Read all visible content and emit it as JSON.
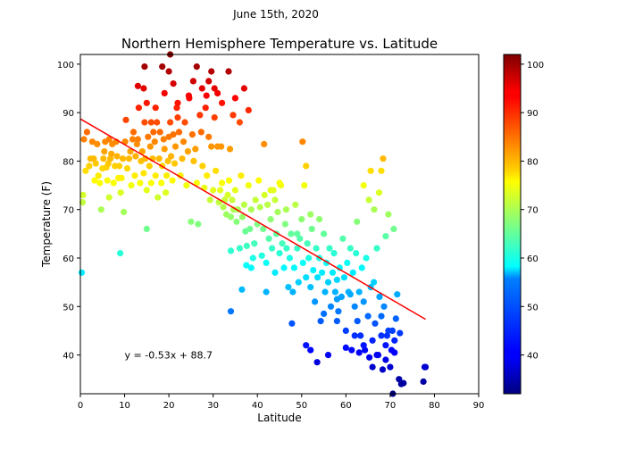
{
  "chart_data": {
    "type": "scatter",
    "suptitle": "June 15th, 2020",
    "title": "Northern Hemisphere Temperature vs. Latitude",
    "xlabel": "Latitude",
    "ylabel": "Temperature (F)",
    "xlim": [
      0,
      90
    ],
    "ylim": [
      32,
      102
    ],
    "xticks": [
      0,
      10,
      20,
      30,
      40,
      50,
      60,
      70,
      80,
      90
    ],
    "yticks": [
      40,
      50,
      60,
      70,
      80,
      90,
      100
    ],
    "grid": false,
    "colormap": "jet",
    "colorbar": {
      "range": [
        32,
        102
      ],
      "ticks": [
        40,
        50,
        60,
        70,
        80,
        90,
        100
      ]
    },
    "regression": {
      "slope": -0.53,
      "intercept": 88.7,
      "x_range": [
        0,
        78
      ],
      "color": "#ff0000",
      "equation": "y = -0.53x + 88.7",
      "label_position": [
        10,
        40
      ]
    },
    "points": [
      [
        0.3,
        57
      ],
      [
        0.5,
        71.5
      ],
      [
        0.6,
        73
      ],
      [
        0.8,
        84.5
      ],
      [
        1.2,
        78
      ],
      [
        1.5,
        86
      ],
      [
        2,
        79
      ],
      [
        2.3,
        80.5
      ],
      [
        2.7,
        84
      ],
      [
        3,
        80.5
      ],
      [
        3.2,
        76
      ],
      [
        3.5,
        79.5
      ],
      [
        3.8,
        83.5
      ],
      [
        4.1,
        77
      ],
      [
        4.4,
        75.5
      ],
      [
        4.7,
        70
      ],
      [
        5,
        78.5
      ],
      [
        5.2,
        80.5
      ],
      [
        5.4,
        82
      ],
      [
        5.6,
        84
      ],
      [
        5.9,
        78.7
      ],
      [
        6.1,
        76
      ],
      [
        6.3,
        79.5
      ],
      [
        6.5,
        84.5
      ],
      [
        6.8,
        80.5
      ],
      [
        7,
        81.5
      ],
      [
        7.2,
        83.5
      ],
      [
        7.5,
        75.5
      ],
      [
        7.8,
        79
      ],
      [
        8.1,
        84
      ],
      [
        8.3,
        81
      ],
      [
        8.6,
        76.5
      ],
      [
        8.8,
        79
      ],
      [
        9.1,
        73.5
      ],
      [
        9.3,
        76.5
      ],
      [
        9.6,
        80.5
      ],
      [
        9.8,
        69.5
      ],
      [
        10.1,
        84
      ],
      [
        10.3,
        88.5
      ],
      [
        10.6,
        78.5
      ],
      [
        9,
        61
      ],
      [
        6.5,
        72.5
      ],
      [
        11,
        80.5
      ],
      [
        11.3,
        82
      ],
      [
        11.5,
        75
      ],
      [
        11.8,
        84.5
      ],
      [
        12,
        86
      ],
      [
        12.3,
        77
      ],
      [
        12.5,
        81
      ],
      [
        12.8,
        83.5
      ],
      [
        13,
        84.5
      ],
      [
        13.2,
        91
      ],
      [
        13.5,
        75.5
      ],
      [
        13.7,
        80
      ],
      [
        14,
        82
      ],
      [
        14.3,
        77.5
      ],
      [
        14.5,
        88
      ],
      [
        14.7,
        80.5
      ],
      [
        15,
        74
      ],
      [
        15,
        66
      ],
      [
        15.3,
        85
      ],
      [
        15.6,
        79
      ],
      [
        15.8,
        83
      ],
      [
        16,
        75.5
      ],
      [
        16.3,
        80.5
      ],
      [
        16.5,
        86
      ],
      [
        16.8,
        84
      ],
      [
        17,
        77
      ],
      [
        17.3,
        88
      ],
      [
        17.5,
        72.5
      ],
      [
        17.8,
        80.5
      ],
      [
        18,
        86
      ],
      [
        18.3,
        75.5
      ],
      [
        18.5,
        79
      ],
      [
        18.8,
        84.5
      ],
      [
        19,
        82.5
      ],
      [
        19.3,
        73.5
      ],
      [
        19.5,
        77
      ],
      [
        19.8,
        80
      ],
      [
        20,
        85
      ],
      [
        20.3,
        88
      ],
      [
        20.5,
        81
      ],
      [
        20.8,
        76
      ],
      [
        21,
        85.5
      ],
      [
        21.3,
        79.5
      ],
      [
        21.5,
        83
      ],
      [
        21.8,
        91
      ],
      [
        22,
        89
      ],
      [
        22.3,
        86
      ],
      [
        22.6,
        77
      ],
      [
        23,
        80.5
      ],
      [
        23.3,
        84
      ],
      [
        23.6,
        88
      ],
      [
        24,
        75
      ],
      [
        24.3,
        82
      ],
      [
        24.6,
        93
      ],
      [
        25,
        67.5
      ],
      [
        25.3,
        85.5
      ],
      [
        25.6,
        80
      ],
      [
        26,
        82.5
      ],
      [
        26.3,
        75.5
      ],
      [
        26.6,
        67
      ],
      [
        27,
        89.5
      ],
      [
        27.3,
        86
      ],
      [
        27.6,
        79
      ],
      [
        28,
        74.5
      ],
      [
        28.3,
        91
      ],
      [
        28.6,
        77
      ],
      [
        29,
        85
      ],
      [
        29.3,
        72
      ],
      [
        29.6,
        83
      ],
      [
        30,
        74
      ],
      [
        30.3,
        89
      ],
      [
        30.6,
        78
      ],
      [
        31,
        83
      ],
      [
        31.3,
        71.5
      ],
      [
        31.6,
        74
      ],
      [
        32,
        75.5
      ],
      [
        32.3,
        70.5
      ],
      [
        32.6,
        72
      ],
      [
        33,
        69
      ],
      [
        33.3,
        73
      ],
      [
        33.6,
        76
      ],
      [
        34,
        68.5
      ],
      [
        34.3,
        72
      ],
      [
        34.6,
        70
      ],
      [
        35,
        74
      ],
      [
        35.3,
        67.5
      ],
      [
        35.6,
        70
      ],
      [
        36,
        62
      ],
      [
        36.3,
        77
      ],
      [
        36.6,
        68.5
      ],
      [
        37,
        71
      ],
      [
        37.3,
        65.5
      ],
      [
        37.6,
        62.5
      ],
      [
        38,
        75
      ],
      [
        38.3,
        66
      ],
      [
        38.6,
        70
      ],
      [
        39,
        60
      ],
      [
        39.3,
        63
      ],
      [
        39.6,
        72
      ],
      [
        40,
        67
      ],
      [
        40.3,
        76
      ],
      [
        40.6,
        70.5
      ],
      [
        41,
        60.5
      ],
      [
        41.3,
        66
      ],
      [
        41.6,
        73
      ],
      [
        42,
        59
      ],
      [
        42.3,
        71
      ],
      [
        42.6,
        64
      ],
      [
        43,
        68
      ],
      [
        43.3,
        62
      ],
      [
        43.6,
        74
      ],
      [
        44,
        57
      ],
      [
        44.3,
        65
      ],
      [
        44.6,
        69.5
      ],
      [
        45,
        61
      ],
      [
        45.3,
        75
      ],
      [
        45.6,
        63
      ],
      [
        46,
        58
      ],
      [
        46.3,
        67
      ],
      [
        46.6,
        62
      ],
      [
        47,
        54
      ],
      [
        47.3,
        60
      ],
      [
        47.6,
        65
      ],
      [
        48,
        53
      ],
      [
        48.3,
        58
      ],
      [
        48.6,
        71
      ],
      [
        49,
        62
      ],
      [
        49.3,
        55
      ],
      [
        49.6,
        64
      ],
      [
        50,
        68
      ],
      [
        50.3,
        59
      ],
      [
        50.6,
        75
      ],
      [
        51,
        56
      ],
      [
        51.3,
        63
      ],
      [
        51.6,
        60
      ],
      [
        52,
        54
      ],
      [
        52.3,
        66
      ],
      [
        52.6,
        57.5
      ],
      [
        53,
        51
      ],
      [
        53.3,
        62
      ],
      [
        53.6,
        56
      ],
      [
        54,
        60
      ],
      [
        54.3,
        47
      ],
      [
        54.6,
        57
      ],
      [
        55,
        65
      ],
      [
        55.3,
        53
      ],
      [
        55.6,
        59
      ],
      [
        56,
        55
      ],
      [
        56.3,
        62
      ],
      [
        56.6,
        50
      ],
      [
        57,
        57
      ],
      [
        57.3,
        61
      ],
      [
        57.6,
        53
      ],
      [
        58,
        55.5
      ],
      [
        58.3,
        49
      ],
      [
        58.6,
        58
      ],
      [
        59,
        52
      ],
      [
        59.3,
        64
      ],
      [
        59.6,
        56
      ],
      [
        60,
        45
      ],
      [
        60.3,
        59
      ],
      [
        60.6,
        53
      ],
      [
        61,
        62
      ],
      [
        61.3,
        41
      ],
      [
        61.6,
        57
      ],
      [
        62,
        50
      ],
      [
        62.3,
        61
      ],
      [
        62.6,
        47
      ],
      [
        63,
        53
      ],
      [
        63.3,
        44
      ],
      [
        63.6,
        58
      ],
      [
        64,
        51
      ],
      [
        64.3,
        41
      ],
      [
        64.6,
        60
      ],
      [
        65,
        48
      ],
      [
        65.3,
        39.5
      ],
      [
        65.6,
        54
      ],
      [
        66,
        43
      ],
      [
        66.3,
        55
      ],
      [
        66.6,
        46.5
      ],
      [
        67,
        62
      ],
      [
        67.3,
        40
      ],
      [
        67.6,
        52
      ],
      [
        68,
        44
      ],
      [
        68.3,
        37
      ],
      [
        68.6,
        50
      ],
      [
        69,
        42
      ],
      [
        69.3,
        44
      ],
      [
        69.6,
        45
      ],
      [
        70,
        37.5
      ],
      [
        70.3,
        41
      ],
      [
        70.6,
        32
      ],
      [
        71,
        43
      ],
      [
        71.3,
        47.5
      ],
      [
        71.6,
        52.5
      ],
      [
        72,
        35
      ],
      [
        72.5,
        34
      ],
      [
        78,
        37.5
      ],
      [
        14.5,
        99.5
      ],
      [
        14.3,
        95
      ],
      [
        15,
        92
      ],
      [
        17,
        91
      ],
      [
        18.5,
        99.5
      ],
      [
        19,
        94
      ],
      [
        20,
        98.5
      ],
      [
        20.3,
        102
      ],
      [
        21,
        96
      ],
      [
        22,
        92
      ],
      [
        24.5,
        93.5
      ],
      [
        25.5,
        96.5
      ],
      [
        26.3,
        99.5
      ],
      [
        27.5,
        95
      ],
      [
        28.5,
        93.5
      ],
      [
        29,
        96.5
      ],
      [
        29.6,
        98.5
      ],
      [
        30.3,
        95
      ],
      [
        31,
        94
      ],
      [
        32,
        92
      ],
      [
        33.5,
        98.5
      ],
      [
        34.5,
        89.5
      ],
      [
        35,
        93
      ],
      [
        36,
        88
      ],
      [
        37,
        95
      ],
      [
        38,
        90.5
      ],
      [
        13,
        95.5
      ],
      [
        16,
        88
      ],
      [
        31.8,
        83
      ],
      [
        33.8,
        82.5
      ],
      [
        34,
        61.5
      ],
      [
        37.5,
        58.5
      ],
      [
        38.6,
        58
      ],
      [
        36.5,
        53.5
      ],
      [
        34,
        49
      ],
      [
        42,
        53
      ],
      [
        41.5,
        83.5
      ],
      [
        43,
        74
      ],
      [
        44,
        72
      ],
      [
        45,
        75.5
      ],
      [
        46.5,
        70
      ],
      [
        47.8,
        46.5
      ],
      [
        49,
        65
      ],
      [
        50.2,
        84
      ],
      [
        51,
        79
      ],
      [
        52,
        69
      ],
      [
        53.5,
        38.5
      ],
      [
        54,
        68
      ],
      [
        55,
        48.5
      ],
      [
        58,
        51.5
      ],
      [
        61,
        52.5
      ],
      [
        62.5,
        67.5
      ],
      [
        64,
        75
      ],
      [
        65.2,
        72
      ],
      [
        65.6,
        78
      ],
      [
        66.4,
        70
      ],
      [
        67.5,
        73.5
      ],
      [
        68,
        78
      ],
      [
        68.4,
        80.5
      ],
      [
        69,
        64.5
      ],
      [
        69.6,
        69
      ],
      [
        70.8,
        66
      ],
      [
        72.2,
        44.5
      ],
      [
        70.5,
        45
      ],
      [
        68,
        48
      ],
      [
        66,
        37.5
      ],
      [
        63,
        40.5
      ],
      [
        60,
        41.5
      ],
      [
        56,
        40
      ],
      [
        52,
        41
      ],
      [
        51,
        42
      ],
      [
        58,
        47
      ],
      [
        62,
        44
      ],
      [
        64,
        42
      ],
      [
        67,
        40
      ],
      [
        69,
        39
      ],
      [
        71,
        40.5
      ],
      [
        73,
        34.2
      ],
      [
        77.5,
        34.5
      ],
      [
        77.8,
        37.5
      ]
    ]
  }
}
